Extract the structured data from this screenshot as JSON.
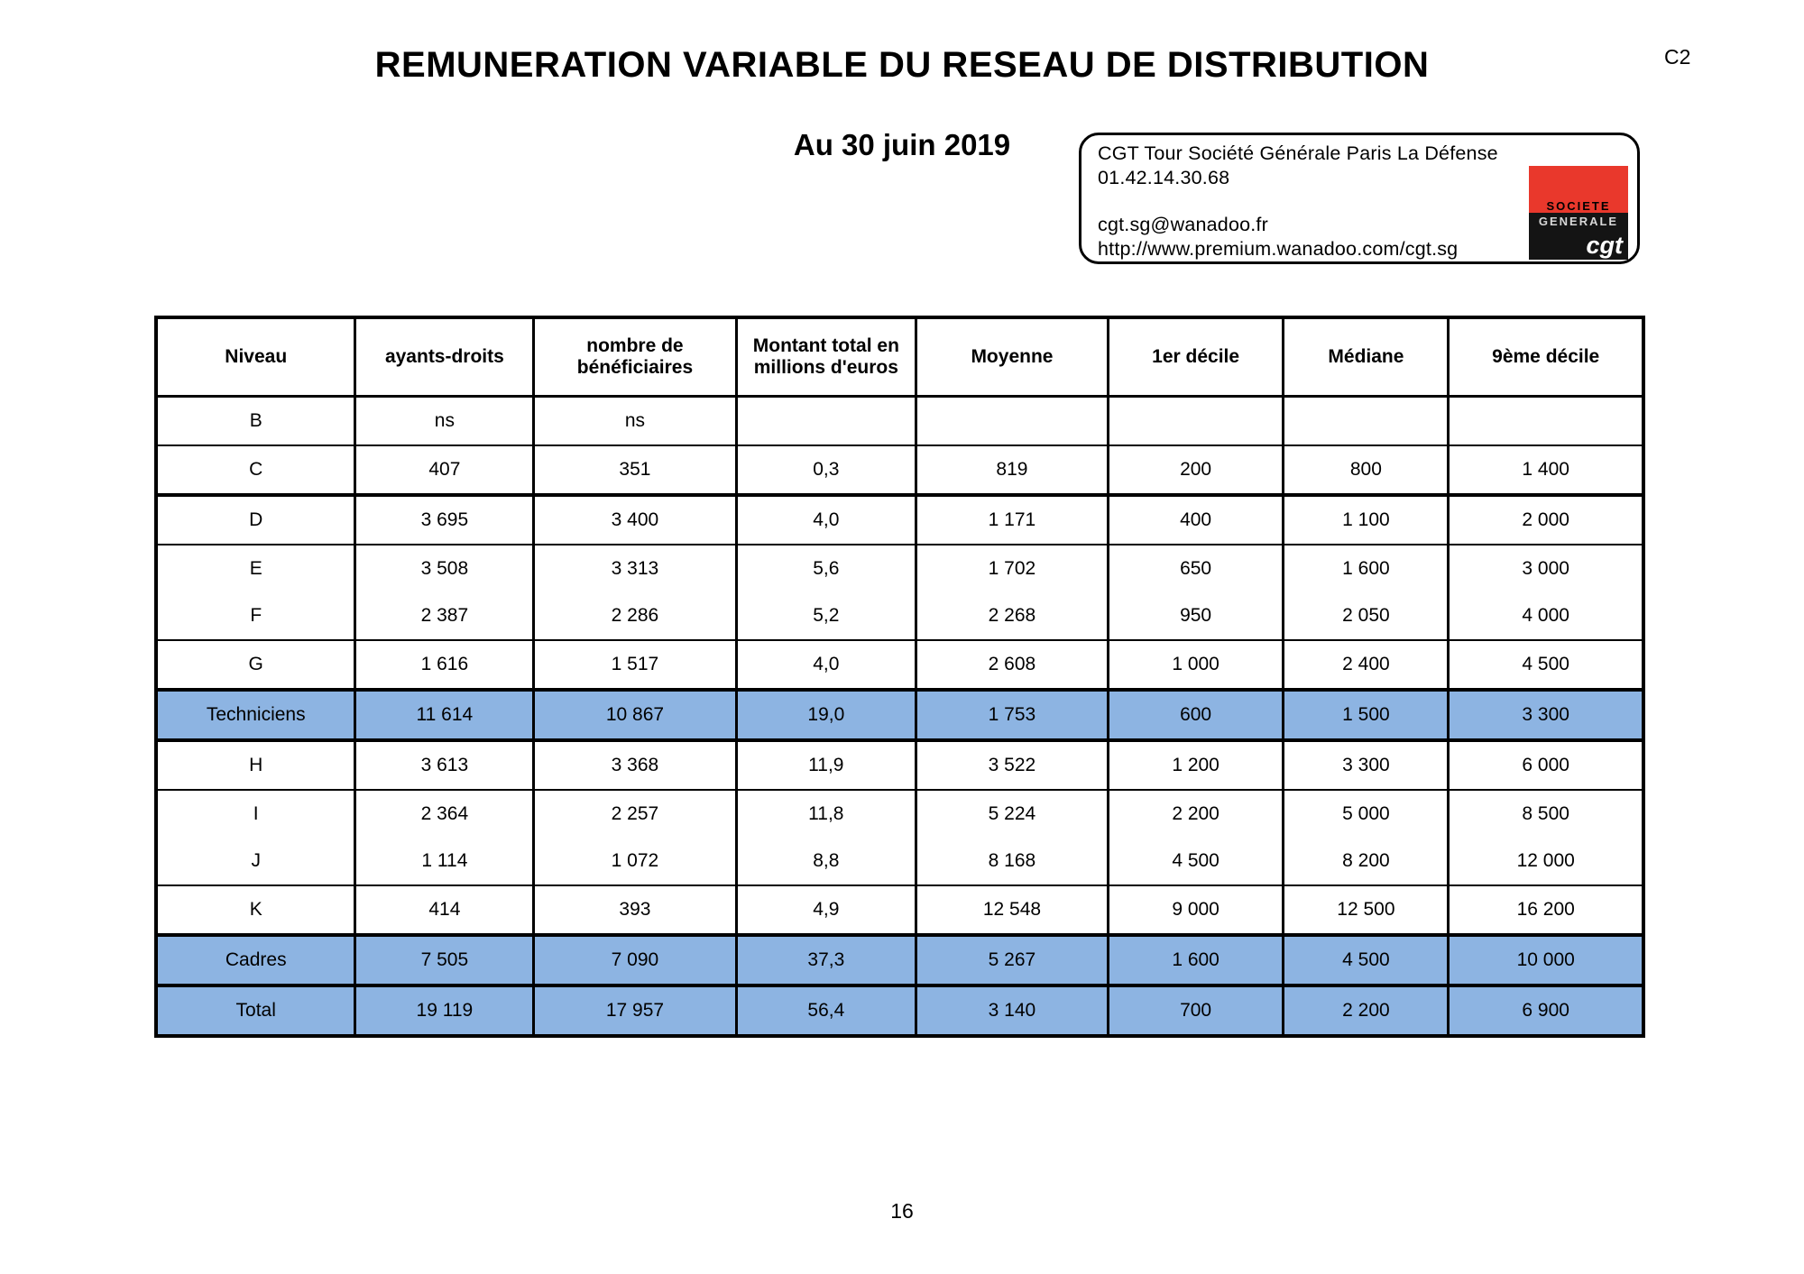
{
  "page": {
    "classification": "C2",
    "title": "REMUNERATION VARIABLE DU RESEAU DE DISTRIBUTION",
    "subtitle": "Au 30 juin 2019",
    "page_number": "16"
  },
  "contact_box": {
    "address": "CGT Tour Société Générale Paris La Défense",
    "phone": "01.42.14.30.68",
    "email": "cgt.sg@wanadoo.fr",
    "website": "http://www.premium.wanadoo.com/cgt.sg",
    "logo": {
      "brand_top": "SOCIETE",
      "brand_bottom": "GENERALE",
      "union": "cgt",
      "red": "#e9382c",
      "black": "#141414"
    }
  },
  "table": {
    "highlight_color": "#8db4e2",
    "headers": [
      {
        "label": "Niveau"
      },
      {
        "label": "ayants-droits"
      },
      {
        "label": "nombre de\nbénéficiaires"
      },
      {
        "label": "Montant total en\nmillions d'euros"
      },
      {
        "label": "Moyenne"
      },
      {
        "label": "1er décile"
      },
      {
        "label": "Médiane"
      },
      {
        "label": "9ème décile"
      }
    ],
    "rows": [
      {
        "niveau": "B",
        "values": [
          "ns",
          "ns",
          "",
          "",
          "",
          "",
          ""
        ],
        "highlight": false,
        "divider": "thin"
      },
      {
        "niveau": "C",
        "values": [
          "407",
          "351",
          "0,3",
          "819",
          "200",
          "800",
          "1 400"
        ],
        "highlight": false,
        "divider": "thin"
      },
      {
        "niveau": "D",
        "values": [
          "3 695",
          "3 400",
          "4,0",
          "1 171",
          "400",
          "1 100",
          "2 000"
        ],
        "highlight": false,
        "divider": "thick"
      },
      {
        "niveau": "E",
        "values": [
          "3 508",
          "3 313",
          "5,6",
          "1 702",
          "650",
          "1 600",
          "3 000"
        ],
        "highlight": false,
        "divider": "thin"
      },
      {
        "niveau": "F",
        "values": [
          "2 387",
          "2 286",
          "5,2",
          "2 268",
          "950",
          "2 050",
          "4 000"
        ],
        "highlight": false,
        "divider": "none"
      },
      {
        "niveau": "G",
        "values": [
          "1 616",
          "1 517",
          "4,0",
          "2 608",
          "1 000",
          "2 400",
          "4 500"
        ],
        "highlight": false,
        "divider": "thin"
      },
      {
        "niveau": "Techniciens",
        "values": [
          "11 614",
          "10 867",
          "19,0",
          "1 753",
          "600",
          "1 500",
          "3 300"
        ],
        "highlight": true,
        "divider": "thick"
      },
      {
        "niveau": "H",
        "values": [
          "3 613",
          "3 368",
          "11,9",
          "3 522",
          "1 200",
          "3 300",
          "6 000"
        ],
        "highlight": false,
        "divider": "thick"
      },
      {
        "niveau": "I",
        "values": [
          "2 364",
          "2 257",
          "11,8",
          "5 224",
          "2 200",
          "5 000",
          "8 500"
        ],
        "highlight": false,
        "divider": "thin"
      },
      {
        "niveau": "J",
        "values": [
          "1 114",
          "1 072",
          "8,8",
          "8 168",
          "4 500",
          "8 200",
          "12 000"
        ],
        "highlight": false,
        "divider": "none"
      },
      {
        "niveau": "K",
        "values": [
          "414",
          "393",
          "4,9",
          "12 548",
          "9 000",
          "12 500",
          "16 200"
        ],
        "highlight": false,
        "divider": "thin"
      },
      {
        "niveau": "Cadres",
        "values": [
          "7 505",
          "7 090",
          "37,3",
          "5 267",
          "1 600",
          "4 500",
          "10 000"
        ],
        "highlight": true,
        "divider": "thick"
      },
      {
        "niveau": "Total",
        "values": [
          "19 119",
          "17 957",
          "56,4",
          "3 140",
          "700",
          "2 200",
          "6 900"
        ],
        "highlight": true,
        "divider": "thick"
      }
    ]
  }
}
